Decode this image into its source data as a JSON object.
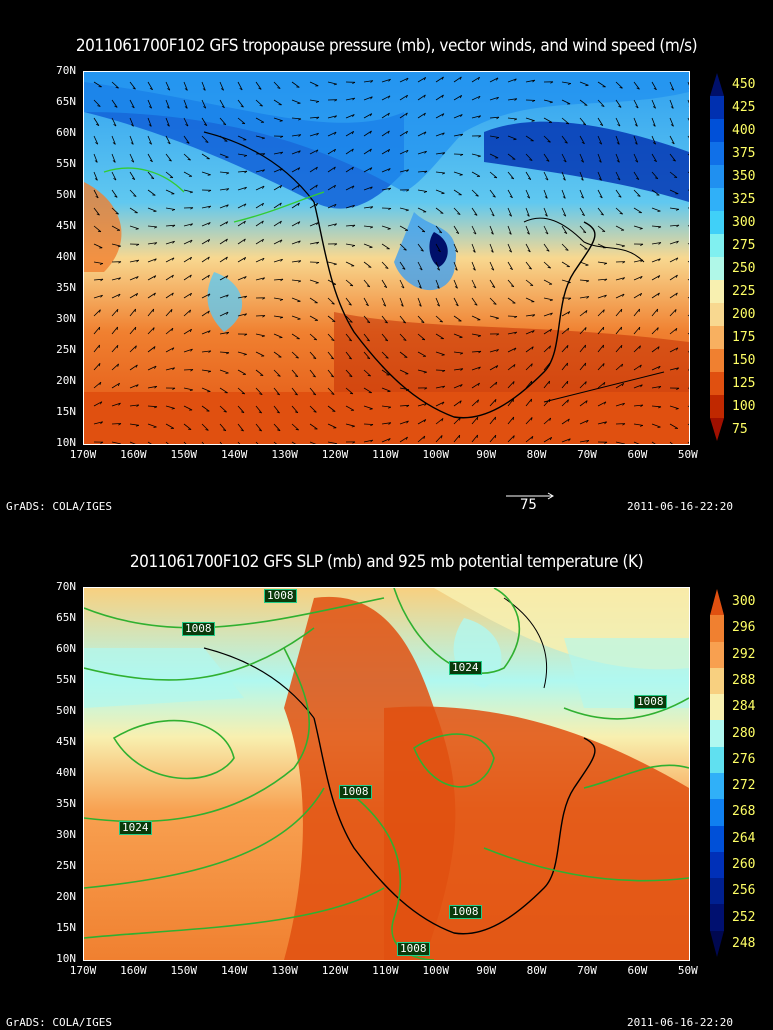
{
  "top": {
    "title": "2011061700F102 GFS tropopause pressure (mb), vector winds, and wind speed (m/s)",
    "lat_labels": [
      "70N",
      "65N",
      "60N",
      "55N",
      "50N",
      "45N",
      "40N",
      "35N",
      "30N",
      "25N",
      "20N",
      "15N",
      "10N"
    ],
    "lon_labels": [
      "170W",
      "160W",
      "150W",
      "140W",
      "130W",
      "120W",
      "110W",
      "100W",
      "90W",
      "80W",
      "70W",
      "60W",
      "50W"
    ],
    "colorbar": {
      "labels": [
        "450",
        "425",
        "400",
        "375",
        "350",
        "325",
        "300",
        "275",
        "250",
        "225",
        "200",
        "175",
        "150",
        "125",
        "100",
        "75"
      ],
      "colors": [
        "#00106a",
        "#0030b0",
        "#0050d8",
        "#1070e8",
        "#2090f0",
        "#30b0f8",
        "#40d0f8",
        "#80f0f0",
        "#b0f8e8",
        "#f8f0b0",
        "#f8d890",
        "#f8b060",
        "#f08030",
        "#e05010",
        "#c02800",
        "#a01000"
      ]
    },
    "vector_ref": "75",
    "credit": "GrADS: COLA/IGES",
    "timestamp": "2011-06-16-22:20"
  },
  "bottom": {
    "title": "2011061700F102 GFS SLP (mb) and 925 mb potential temperature (K)",
    "lat_labels": [
      "70N",
      "65N",
      "60N",
      "55N",
      "50N",
      "45N",
      "40N",
      "35N",
      "30N",
      "25N",
      "20N",
      "15N",
      "10N"
    ],
    "lon_labels": [
      "170W",
      "160W",
      "150W",
      "140W",
      "130W",
      "120W",
      "110W",
      "100W",
      "90W",
      "80W",
      "70W",
      "60W",
      "50W"
    ],
    "colorbar": {
      "labels": [
        "300",
        "296",
        "292",
        "288",
        "284",
        "280",
        "276",
        "272",
        "268",
        "264",
        "260",
        "256",
        "252",
        "248"
      ],
      "colors": [
        "#e05010",
        "#f08030",
        "#f8a050",
        "#f8d080",
        "#f8f0b0",
        "#b0f8f0",
        "#60e0f0",
        "#30b0f8",
        "#1080f0",
        "#0050d8",
        "#0030b8",
        "#002090",
        "#001070",
        "#000850"
      ]
    },
    "contour_labels": [
      "1008",
      "1008",
      "1024",
      "1008",
      "1008",
      "1024",
      "1008",
      "1008"
    ],
    "credit": "GrADS: COLA/IGES",
    "timestamp": "2011-06-16-22:20"
  }
}
